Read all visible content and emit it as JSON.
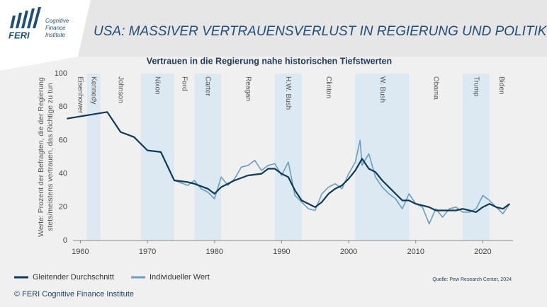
{
  "logo": {
    "brand": "FERI",
    "lines": [
      "Cognitive",
      "Finance",
      "Institute"
    ]
  },
  "header": {
    "title": "USA: MASSIVER VERTRAUENSVERLUST IN REGIERUNG UND POLITIK"
  },
  "chart_data": {
    "type": "line",
    "title": "Vertrauen in die Regierung nahe historischen Tiefstwerten",
    "y_label": [
      "Werte: Prozent der Befragten, die der Regierung",
      "stets/meistens vertrauen, das Richtige zu tun"
    ],
    "xlim": [
      1958.9,
      2024.5
    ],
    "xticks": [
      1960,
      1970,
      1980,
      1990,
      2000,
      2010,
      2020
    ],
    "ylim": [
      0,
      100
    ],
    "yticks": [
      0,
      20,
      40,
      60,
      80,
      100
    ],
    "grid": false,
    "presidents": [
      {
        "name": "Eisenhower",
        "start": 1953,
        "end": 1961,
        "shaded": false
      },
      {
        "name": "Kennedy",
        "start": 1961,
        "end": 1963,
        "shaded": true
      },
      {
        "name": "Johnson",
        "start": 1963,
        "end": 1969,
        "shaded": false
      },
      {
        "name": "Nixon",
        "start": 1969,
        "end": 1974,
        "shaded": true
      },
      {
        "name": "Ford",
        "start": 1974,
        "end": 1977,
        "shaded": false
      },
      {
        "name": "Carter",
        "start": 1977,
        "end": 1981,
        "shaded": true
      },
      {
        "name": "Reagan",
        "start": 1981,
        "end": 1989,
        "shaded": false
      },
      {
        "name": "H.W. Bush",
        "start": 1989,
        "end": 1993,
        "shaded": true
      },
      {
        "name": "Clinton",
        "start": 1993,
        "end": 2001,
        "shaded": false
      },
      {
        "name": "W. Bush",
        "start": 2001,
        "end": 2009,
        "shaded": true
      },
      {
        "name": "Obama",
        "start": 2009,
        "end": 2017,
        "shaded": false
      },
      {
        "name": "Trump",
        "start": 2017,
        "end": 2021,
        "shaded": true
      },
      {
        "name": "Biden",
        "start": 2021,
        "end": 2025,
        "shaded": false
      }
    ],
    "band_color": "#dce9f3",
    "series": [
      {
        "name": "Individueller Wert",
        "color": "#6a9ec2",
        "width": 1.6,
        "x": [
          1958,
          1964,
          1966,
          1968,
          1970,
          1972,
          1974,
          1976,
          1977,
          1978,
          1979,
          1980,
          1981,
          1982,
          1983,
          1984,
          1985,
          1986,
          1987,
          1988,
          1989,
          1990,
          1991,
          1992,
          1993,
          1994,
          1995,
          1996,
          1997,
          1998,
          1999,
          2000,
          2001,
          2001.7,
          2002,
          2003,
          2004,
          2005,
          2006,
          2007,
          2008,
          2009,
          2010,
          2011,
          2012,
          2013,
          2014,
          2015,
          2016,
          2017,
          2018,
          2019,
          2020,
          2021,
          2022,
          2023,
          2024
        ],
        "values": [
          73,
          77,
          65,
          62,
          54,
          53,
          36,
          33,
          36,
          31,
          29,
          25,
          38,
          33,
          37,
          44,
          45,
          48,
          42,
          45,
          46,
          39,
          47,
          27,
          23,
          19,
          18,
          28,
          32,
          34,
          31,
          40,
          47,
          60,
          45,
          52,
          38,
          32,
          28,
          25,
          19,
          28,
          22,
          20,
          10,
          19,
          14,
          19,
          20,
          17,
          17,
          19,
          27,
          24,
          20,
          16,
          22
        ]
      },
      {
        "name": "Gleitender Durchschnitt",
        "color": "#0e3a55",
        "width": 2.2,
        "x": [
          1958,
          1964,
          1966,
          1968,
          1970,
          1972,
          1974,
          1976,
          1977,
          1979,
          1980,
          1981,
          1983,
          1985,
          1987,
          1988,
          1989,
          1990,
          1991,
          1992,
          1993,
          1994,
          1995,
          1996,
          1997,
          1998,
          1999,
          2000,
          2001,
          2002,
          2003,
          2004,
          2005,
          2006,
          2007,
          2008,
          2009,
          2010,
          2011,
          2012,
          2013,
          2014,
          2015,
          2016,
          2017,
          2018,
          2019,
          2020,
          2021,
          2022,
          2023,
          2024
        ],
        "values": [
          73,
          77,
          65,
          62,
          54,
          53,
          36,
          35,
          34,
          31,
          28,
          32,
          36,
          39,
          40,
          43,
          43,
          40,
          38,
          30,
          24,
          22,
          20,
          23,
          28,
          31,
          33,
          37,
          42,
          49,
          43,
          41,
          36,
          32,
          28,
          24,
          24,
          22,
          21,
          20,
          18,
          18,
          18,
          18,
          19,
          18,
          17,
          20,
          22,
          20,
          19,
          22
        ]
      }
    ],
    "legend_order": [
      1,
      0
    ],
    "source": "Quelle: Pew Research Center, 2024"
  },
  "footer": "© FERI Cognitive Finance Institute"
}
